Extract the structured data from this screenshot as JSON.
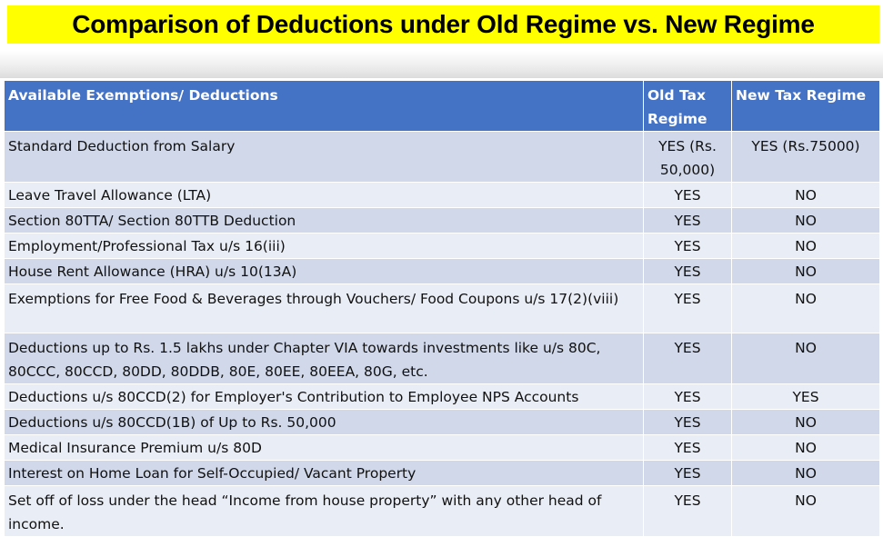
{
  "title": "Comparison of Deductions under Old Regime vs. New Regime",
  "colors": {
    "title_bg": "#ffff00",
    "header_bg": "#4472c4",
    "row_odd": "#d0d8ea",
    "row_even": "#e9edf5"
  },
  "table": {
    "headers": [
      "Available Exemptions/ Deductions",
      "Old Tax Regime",
      "New Tax Regime"
    ],
    "rows": [
      {
        "item": "Standard Deduction from Salary",
        "old": "YES (Rs. 50,000)",
        "new": "YES (Rs.75000)"
      },
      {
        "item": "Leave Travel Allowance (LTA)",
        "old": "YES",
        "new": "NO"
      },
      {
        "item": "Section 80TTA/ Section 80TTB Deduction",
        "old": "YES",
        "new": "NO"
      },
      {
        "item": "Employment/Professional Tax u/s 16(iii)",
        "old": "YES",
        "new": "NO"
      },
      {
        "item": "House Rent Allowance (HRA) u/s 10(13A)",
        "old": "YES",
        "new": "NO"
      },
      {
        "item": "Exemptions for Free Food & Beverages through Vouchers/ Food Coupons u/s 17(2)(viii)",
        "old": "YES",
        "new": "NO"
      },
      {
        "item": "Deductions up to Rs. 1.5 lakhs under Chapter VIA towards investments like u/s 80C, 80CCC, 80CCD, 80DD, 80DDB, 80E, 80EE, 80EEA, 80G, etc.",
        "old": "YES",
        "new": "NO"
      },
      {
        "item": "Deductions u/s 80CCD(2) for Employer's Contribution to Employee NPS Accounts",
        "old": "YES",
        "new": "YES"
      },
      {
        "item": "Deductions u/s 80CCD(1B) of Up to Rs. 50,000",
        "old": "YES",
        "new": "NO"
      },
      {
        "item": "Medical Insurance Premium u/s 80D",
        "old": "YES",
        "new": "NO"
      },
      {
        "item": "Interest on Home Loan for Self-Occupied/ Vacant Property",
        "old": "YES",
        "new": "NO"
      },
      {
        "item": "Set off of loss under the head “Income from house property” with any other head of income.",
        "old": "YES",
        "new": "NO"
      }
    ]
  }
}
